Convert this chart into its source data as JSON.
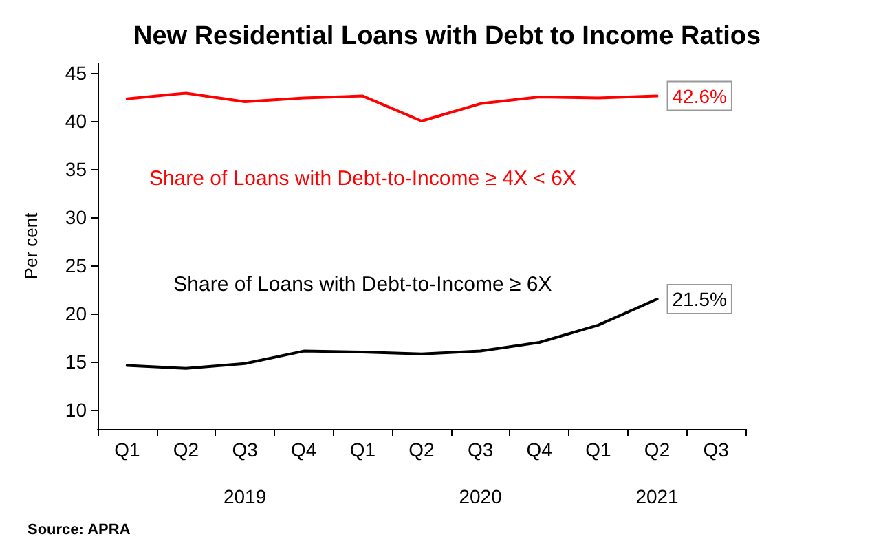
{
  "chart_data": {
    "type": "line",
    "title": "New Residential Loans with Debt to Income Ratios",
    "ylabel": "Per cent",
    "categories": [
      "Q1",
      "Q2",
      "Q3",
      "Q4",
      "Q1",
      "Q2",
      "Q3",
      "Q4",
      "Q1",
      "Q2",
      "Q3"
    ],
    "series": [
      {
        "name": "Share of Loans with Debt-to-Income ≥ 4X < 6X",
        "color": "#ff0000",
        "values": [
          42.3,
          42.9,
          42.0,
          42.4,
          42.6,
          40.0,
          41.8,
          42.5,
          42.4,
          42.6,
          null
        ],
        "value_labels": [
          null,
          null,
          null,
          null,
          null,
          null,
          null,
          null,
          null,
          "42.6%",
          null
        ]
      },
      {
        "name": "Share of Loans with Debt-to-Income ≥ 6X",
        "color": "#000000",
        "values": [
          14.6,
          14.3,
          14.8,
          16.1,
          16.0,
          15.8,
          16.1,
          17.0,
          18.8,
          21.5,
          null
        ],
        "value_labels": [
          null,
          null,
          null,
          null,
          null,
          null,
          null,
          null,
          null,
          "21.5%",
          null
        ]
      }
    ],
    "ylim": [
      8,
      46
    ],
    "yticks": [
      10,
      15,
      20,
      25,
      30,
      35,
      40,
      45
    ],
    "grid": false,
    "legend": false,
    "marker": "none",
    "line_style": "solid",
    "annotations": [
      "2019",
      "2020",
      "2021",
      "Source: APRA"
    ]
  }
}
